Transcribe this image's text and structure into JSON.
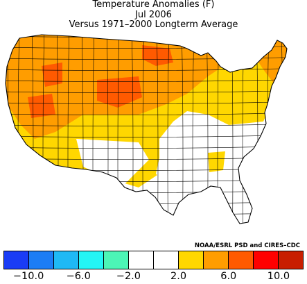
{
  "title": {
    "line1": "Temperature Anomalies (F)",
    "line2": "Jul 2006",
    "line3": "Versus 1971–2000 Longterm Average"
  },
  "credit": "NOAA/ESRL PSD and CIRES–CDC",
  "legend": {
    "colors": [
      "#1a3cf5",
      "#1c7df5",
      "#1fb9f5",
      "#23f5f5",
      "#4cf5b6",
      "#ffffff",
      "#ffffff",
      "#ffd700",
      "#ff9d00",
      "#ff5a00",
      "#ff0000",
      "#c81e00"
    ],
    "tick_labels": [
      "−10.0",
      "−6.0",
      "−2.0",
      "2.0",
      "6.0",
      "10.0"
    ]
  },
  "map": {
    "colors": {
      "light": "#ffd700",
      "mid": "#ff9d00",
      "high": "#ff5a00",
      "none": "#ffffff",
      "border": "#000000"
    }
  }
}
